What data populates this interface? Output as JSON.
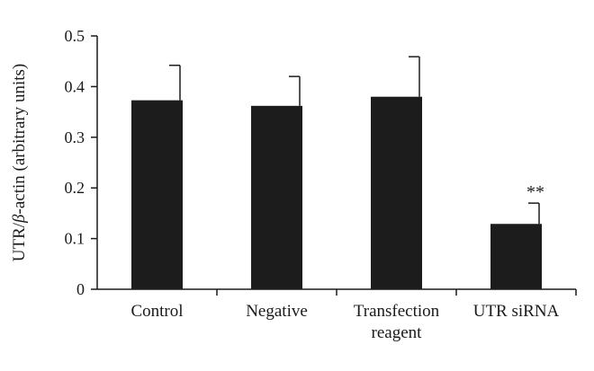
{
  "chart_data": {
    "type": "bar",
    "title": "",
    "xlabel": "",
    "ylabel_parts": [
      "UTR/",
      "β",
      "-actin (arbitrary units)"
    ],
    "categories": [
      [
        "Control"
      ],
      [
        "Negative"
      ],
      [
        "Transfection",
        "reagent"
      ],
      [
        "UTR siRNA"
      ]
    ],
    "values": [
      0.373,
      0.362,
      0.38,
      0.129
    ],
    "errors": [
      0.069,
      0.058,
      0.079,
      0.041
    ],
    "annotations": [
      "",
      "",
      "",
      "**"
    ],
    "ylim": [
      0,
      0.5
    ],
    "yticks": [
      "0",
      "0.1",
      "0.2",
      "0.3",
      "0.4",
      "0.5"
    ],
    "grid": false,
    "bar_color": "#1c1c1c"
  }
}
